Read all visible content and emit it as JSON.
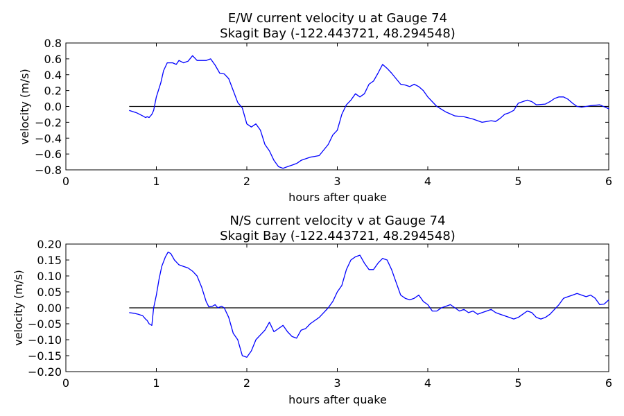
{
  "chart_data": [
    {
      "type": "line",
      "title": "E/W current velocity u at Gauge 74",
      "subtitle": "Skagit Bay  (-122.443721, 48.294548)",
      "xlabel": "hours after quake",
      "ylabel": "velocity (m/s)",
      "xlim": [
        0,
        6
      ],
      "ylim": [
        -0.8,
        0.8
      ],
      "xticks": [
        0,
        1,
        2,
        3,
        4,
        5,
        6
      ],
      "xtick_labels": [
        "0",
        "1",
        "2",
        "3",
        "4",
        "5",
        "6"
      ],
      "yticks": [
        -0.8,
        -0.6,
        -0.4,
        -0.2,
        0.0,
        0.2,
        0.4,
        0.6,
        0.8
      ],
      "ytick_labels": [
        "−0.8",
        "−0.6",
        "−0.4",
        "−0.2",
        "0.0",
        "0.2",
        "0.4",
        "0.6",
        "0.8"
      ],
      "grid": false,
      "series": [
        {
          "color": "#0000ff",
          "x": [
            0.7,
            0.78,
            0.85,
            0.88,
            0.9,
            0.92,
            0.95,
            0.97,
            1.0,
            1.05,
            1.08,
            1.12,
            1.18,
            1.22,
            1.25,
            1.3,
            1.35,
            1.4,
            1.45,
            1.5,
            1.55,
            1.6,
            1.65,
            1.7,
            1.75,
            1.8,
            1.85,
            1.9,
            1.95,
            2.0,
            2.05,
            2.1,
            2.15,
            2.2,
            2.25,
            2.3,
            2.35,
            2.4,
            2.45,
            2.5,
            2.55,
            2.6,
            2.65,
            2.7,
            2.75,
            2.8,
            2.85,
            2.9,
            2.95,
            3.0,
            3.05,
            3.1,
            3.15,
            3.2,
            3.25,
            3.3,
            3.35,
            3.4,
            3.45,
            3.5,
            3.55,
            3.6,
            3.65,
            3.7,
            3.75,
            3.8,
            3.85,
            3.9,
            3.95,
            4.0,
            4.1,
            4.2,
            4.3,
            4.4,
            4.5,
            4.6,
            4.7,
            4.75,
            4.8,
            4.85,
            4.9,
            4.95,
            5.0,
            5.05,
            5.1,
            5.15,
            5.2,
            5.3,
            5.35,
            5.4,
            5.45,
            5.5,
            5.55,
            5.6,
            5.65,
            5.7,
            5.8,
            5.9,
            6.0
          ],
          "y": [
            -0.05,
            -0.08,
            -0.12,
            -0.14,
            -0.13,
            -0.14,
            -0.1,
            -0.05,
            0.12,
            0.3,
            0.45,
            0.55,
            0.55,
            0.53,
            0.58,
            0.55,
            0.57,
            0.64,
            0.58,
            0.58,
            0.58,
            0.6,
            0.52,
            0.42,
            0.41,
            0.35,
            0.2,
            0.05,
            -0.02,
            -0.22,
            -0.26,
            -0.22,
            -0.3,
            -0.48,
            -0.56,
            -0.68,
            -0.76,
            -0.78,
            -0.76,
            -0.74,
            -0.72,
            -0.68,
            -0.66,
            -0.64,
            -0.63,
            -0.62,
            -0.55,
            -0.48,
            -0.36,
            -0.3,
            -0.1,
            0.02,
            0.08,
            0.16,
            0.12,
            0.16,
            0.28,
            0.32,
            0.42,
            0.53,
            0.48,
            0.42,
            0.35,
            0.28,
            0.27,
            0.25,
            0.28,
            0.25,
            0.2,
            0.12,
            0.0,
            -0.07,
            -0.12,
            -0.13,
            -0.16,
            -0.2,
            -0.18,
            -0.19,
            -0.15,
            -0.1,
            -0.08,
            -0.05,
            0.04,
            0.06,
            0.08,
            0.06,
            0.02,
            0.03,
            0.06,
            0.1,
            0.12,
            0.12,
            0.09,
            0.04,
            0.0,
            -0.01,
            0.01,
            0.02,
            -0.03
          ]
        }
      ],
      "reference_line": {
        "y": 0,
        "x": [
          0.7,
          6.0
        ],
        "color": "#000000"
      }
    },
    {
      "type": "line",
      "title": "N/S current velocity v at Gauge 74",
      "subtitle": "Skagit Bay  (-122.443721, 48.294548)",
      "xlabel": "hours after quake",
      "ylabel": "velocity (m/s)",
      "xlim": [
        0,
        6
      ],
      "ylim": [
        -0.2,
        0.2
      ],
      "xticks": [
        0,
        1,
        2,
        3,
        4,
        5,
        6
      ],
      "xtick_labels": [
        "0",
        "1",
        "2",
        "3",
        "4",
        "5",
        "6"
      ],
      "yticks": [
        -0.2,
        -0.15,
        -0.1,
        -0.05,
        0.0,
        0.05,
        0.1,
        0.15,
        0.2
      ],
      "ytick_labels": [
        "−0.20",
        "−0.15",
        "−0.10",
        "−0.05",
        "0.00",
        "0.05",
        "0.10",
        "0.15",
        "0.20"
      ],
      "grid": false,
      "series": [
        {
          "color": "#0000ff",
          "x": [
            0.7,
            0.75,
            0.8,
            0.85,
            0.88,
            0.9,
            0.92,
            0.95,
            0.97,
            1.0,
            1.03,
            1.06,
            1.1,
            1.13,
            1.16,
            1.2,
            1.25,
            1.3,
            1.35,
            1.4,
            1.45,
            1.5,
            1.55,
            1.58,
            1.62,
            1.65,
            1.68,
            1.72,
            1.75,
            1.8,
            1.85,
            1.9,
            1.95,
            2.0,
            2.05,
            2.1,
            2.15,
            2.2,
            2.25,
            2.3,
            2.35,
            2.4,
            2.45,
            2.5,
            2.55,
            2.6,
            2.65,
            2.7,
            2.75,
            2.8,
            2.85,
            2.9,
            2.95,
            3.0,
            3.05,
            3.1,
            3.15,
            3.2,
            3.25,
            3.3,
            3.35,
            3.4,
            3.45,
            3.5,
            3.55,
            3.6,
            3.65,
            3.7,
            3.75,
            3.8,
            3.85,
            3.9,
            3.95,
            4.0,
            4.05,
            4.1,
            4.15,
            4.2,
            4.25,
            4.3,
            4.35,
            4.4,
            4.45,
            4.5,
            4.55,
            4.6,
            4.65,
            4.7,
            4.75,
            4.8,
            4.85,
            4.9,
            4.95,
            5.0,
            5.05,
            5.1,
            5.15,
            5.2,
            5.25,
            5.3,
            5.35,
            5.4,
            5.45,
            5.5,
            5.55,
            5.6,
            5.65,
            5.7,
            5.75,
            5.8,
            5.85,
            5.9,
            5.95,
            6.0
          ],
          "y": [
            -0.015,
            -0.017,
            -0.02,
            -0.025,
            -0.035,
            -0.04,
            -0.05,
            -0.055,
            0.0,
            0.04,
            0.09,
            0.13,
            0.16,
            0.175,
            0.17,
            0.15,
            0.135,
            0.13,
            0.125,
            0.115,
            0.1,
            0.065,
            0.02,
            0.003,
            0.005,
            0.01,
            0.0,
            0.005,
            0.0,
            -0.03,
            -0.08,
            -0.1,
            -0.15,
            -0.155,
            -0.135,
            -0.1,
            -0.085,
            -0.07,
            -0.045,
            -0.075,
            -0.065,
            -0.055,
            -0.075,
            -0.09,
            -0.095,
            -0.07,
            -0.065,
            -0.05,
            -0.04,
            -0.03,
            -0.015,
            0.0,
            0.02,
            0.05,
            0.07,
            0.12,
            0.15,
            0.16,
            0.165,
            0.14,
            0.12,
            0.12,
            0.14,
            0.155,
            0.15,
            0.12,
            0.08,
            0.04,
            0.03,
            0.025,
            0.03,
            0.04,
            0.02,
            0.01,
            -0.01,
            -0.01,
            0.0,
            0.005,
            0.01,
            0.0,
            -0.01,
            -0.005,
            -0.015,
            -0.01,
            -0.02,
            -0.015,
            -0.01,
            -0.005,
            -0.015,
            -0.02,
            -0.025,
            -0.03,
            -0.035,
            -0.03,
            -0.02,
            -0.01,
            -0.015,
            -0.03,
            -0.035,
            -0.03,
            -0.02,
            -0.005,
            0.01,
            0.03,
            0.035,
            0.04,
            0.045,
            0.04,
            0.035,
            0.04,
            0.03,
            0.01,
            0.012,
            0.025
          ]
        }
      ],
      "reference_line": {
        "y": 0,
        "x": [
          0.7,
          6.0
        ],
        "color": "#000000"
      }
    }
  ]
}
